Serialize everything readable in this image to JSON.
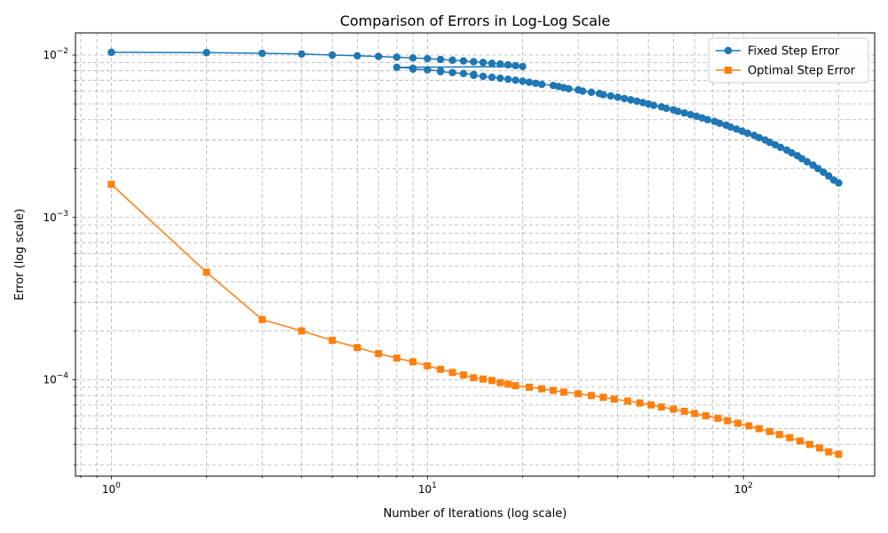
{
  "chart_data": {
    "type": "line",
    "title": "Comparison of Errors in Log-Log Scale",
    "xlabel": "Number of Iterations (log scale)",
    "ylabel": "Error (log scale)",
    "x_scale": "log",
    "y_scale": "log",
    "xlim": [
      0.77,
      260
    ],
    "ylim": [
      2.55e-05,
      0.0137
    ],
    "x_ticks": [
      {
        "value": 1,
        "label": "10",
        "exp": "0"
      },
      {
        "value": 10,
        "label": "10",
        "exp": "1"
      },
      {
        "value": 100,
        "label": "10",
        "exp": "2"
      }
    ],
    "y_ticks": [
      {
        "value": 0.0001,
        "label": "10",
        "exp": "−4"
      },
      {
        "value": 0.001,
        "label": "10",
        "exp": "−3"
      },
      {
        "value": 0.01,
        "label": "10",
        "exp": "−2"
      }
    ],
    "grid": true,
    "legend_position": "top-right",
    "series": [
      {
        "name": "Fixed Step Error",
        "color": "#1f77b4",
        "marker": "circle",
        "x_range": [
          1,
          200
        ],
        "values": [
          0.0104,
          0.01035,
          0.01025,
          0.01015,
          0.01,
          0.0099,
          0.0098,
          0.0097,
          0.0096,
          0.0095,
          0.0094,
          0.0093,
          0.0092,
          0.0091,
          0.009,
          0.0089,
          0.0088,
          0.0087,
          0.0086,
          0.0085,
          0.0084,
          0.0083,
          0.0082,
          0.0081,
          0.008,
          0.0079,
          0.0078,
          0.0077,
          0.0076,
          0.0075,
          0.0074,
          0.0073,
          0.0072,
          0.0071,
          0.007,
          0.0069,
          0.0068,
          0.0067,
          0.0066,
          0.0065,
          0.0064,
          0.0063,
          0.0062,
          0.0061,
          0.006,
          0.0059,
          0.0058,
          0.0057,
          0.0056,
          0.0055,
          0.0054,
          0.0053,
          0.0052,
          0.0051,
          0.005,
          0.0049,
          0.0048,
          0.0047,
          0.0046,
          0.0045,
          0.0044,
          0.0043,
          0.0042,
          0.0041,
          0.004,
          0.0039,
          0.0038,
          0.0037,
          0.0036,
          0.0035,
          0.0034,
          0.0033,
          0.0032,
          0.0031,
          0.003,
          0.0029,
          0.0028,
          0.0027,
          0.0026,
          0.0025,
          0.0024,
          0.0023,
          0.0022,
          0.0021,
          0.002,
          0.0019,
          0.0018,
          0.0017,
          0.00163
        ]
      },
      {
        "name": "Optimal Step Error",
        "color": "#ff7f0e",
        "marker": "square",
        "x_range": [
          1,
          200
        ],
        "values": [
          0.0016,
          0.00046,
          0.000235,
          0.0002,
          0.000175,
          0.000158,
          0.000145,
          0.000136,
          0.000129,
          0.000122,
          0.000116,
          0.000111,
          0.000107,
          0.000103,
          0.000101,
          9.9e-05,
          9.6e-05,
          9.4e-05,
          9.2e-05,
          9e-05,
          8.8e-05,
          8.6e-05,
          8.4e-05,
          8.2e-05,
          8e-05,
          7.8e-05,
          7.6e-05,
          7.4e-05,
          7.2e-05,
          7e-05,
          6.8e-05,
          6.6e-05,
          6.4e-05,
          6.2e-05,
          6e-05,
          5.8e-05,
          5.6e-05,
          5.4e-05,
          5.2e-05,
          5e-05,
          4.8e-05,
          4.6e-05,
          4.4e-05,
          4.2e-05,
          4e-05,
          3.8e-05,
          3.6e-05,
          3.48e-05
        ]
      }
    ]
  }
}
